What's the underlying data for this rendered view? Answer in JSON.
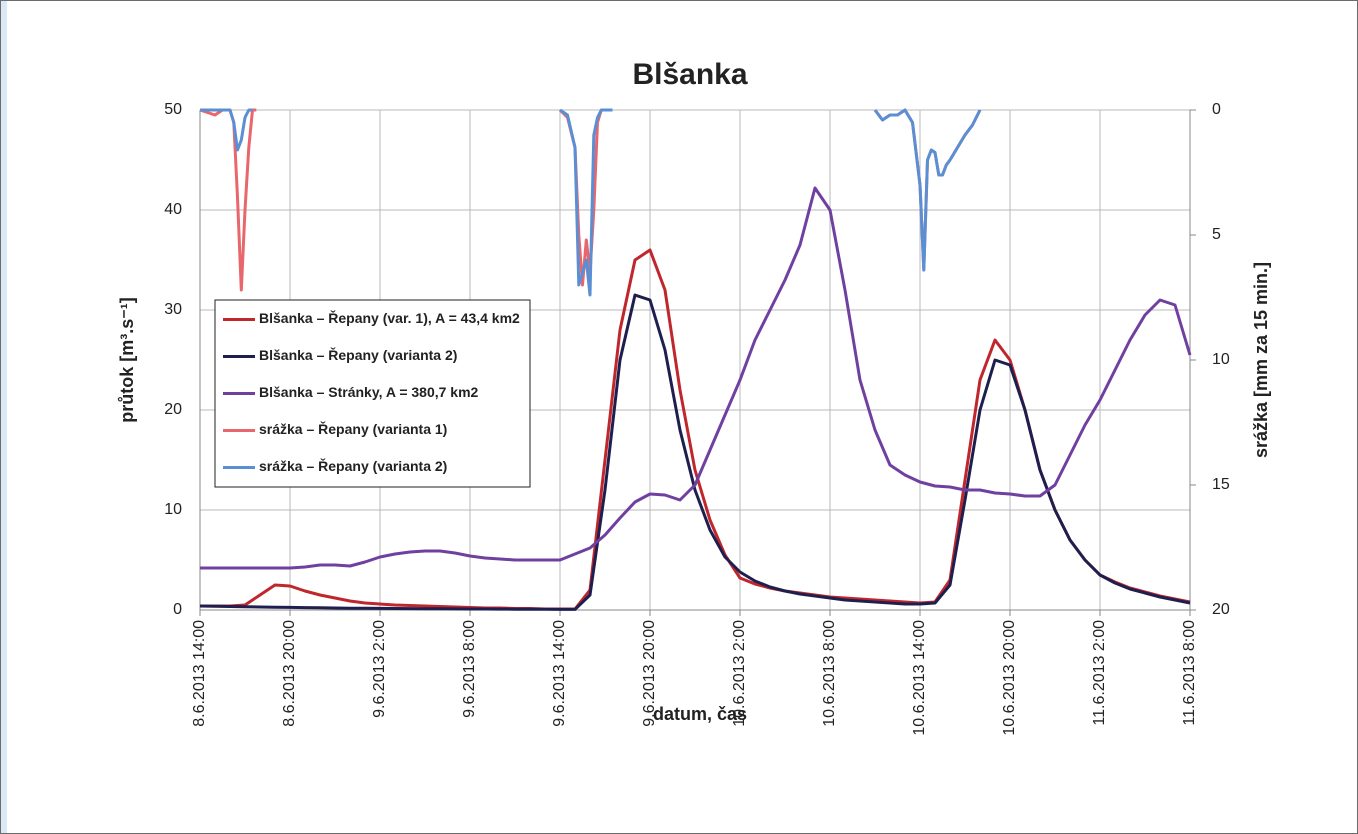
{
  "chart_data": {
    "type": "line",
    "title": "Blšanka",
    "x_label": "datum, čas",
    "y_label": "průtok [m³.s⁻¹]",
    "y2_label": "srážka [mm za 15 min.]",
    "xlim": [
      "2013-06-08T14:00",
      "2013-06-11T08:00"
    ],
    "xticks": [
      {
        "value": "2013-06-08T14:00",
        "label": "8.6.2013 14:00"
      },
      {
        "value": "2013-06-08T20:00",
        "label": "8.6.2013 20:00"
      },
      {
        "value": "2013-06-09T02:00",
        "label": "9.6.2013 2:00"
      },
      {
        "value": "2013-06-09T08:00",
        "label": "9.6.2013 8:00"
      },
      {
        "value": "2013-06-09T14:00",
        "label": "9.6.2013 14:00"
      },
      {
        "value": "2013-06-09T20:00",
        "label": "9.6.2013 20:00"
      },
      {
        "value": "2013-06-10T02:00",
        "label": "10.6.2013 2:00"
      },
      {
        "value": "2013-06-10T08:00",
        "label": "10.6.2013 8:00"
      },
      {
        "value": "2013-06-10T14:00",
        "label": "10.6.2013 14:00"
      },
      {
        "value": "2013-06-10T20:00",
        "label": "10.6.2013 20:00"
      },
      {
        "value": "2013-06-11T02:00",
        "label": "11.6.2013 2:00"
      },
      {
        "value": "2013-06-11T08:00",
        "label": "11.6.2013 8:00"
      }
    ],
    "ylim": [
      0,
      50
    ],
    "yticks": [
      0,
      10,
      20,
      30,
      40,
      50
    ],
    "y2lim": [
      20,
      0
    ],
    "y2ticks": [
      0,
      5,
      10,
      15,
      20
    ],
    "grid": true,
    "legend": "left",
    "x": [
      "2013-06-08T14:00",
      "2013-06-08T15:00",
      "2013-06-08T16:00",
      "2013-06-08T17:00",
      "2013-06-08T18:00",
      "2013-06-08T19:00",
      "2013-06-08T20:00",
      "2013-06-08T21:00",
      "2013-06-08T22:00",
      "2013-06-08T23:00",
      "2013-06-09T00:00",
      "2013-06-09T01:00",
      "2013-06-09T02:00",
      "2013-06-09T03:00",
      "2013-06-09T04:00",
      "2013-06-09T05:00",
      "2013-06-09T06:00",
      "2013-06-09T07:00",
      "2013-06-09T08:00",
      "2013-06-09T09:00",
      "2013-06-09T10:00",
      "2013-06-09T11:00",
      "2013-06-09T12:00",
      "2013-06-09T13:00",
      "2013-06-09T14:00",
      "2013-06-09T15:00",
      "2013-06-09T16:00",
      "2013-06-09T17:00",
      "2013-06-09T18:00",
      "2013-06-09T19:00",
      "2013-06-09T20:00",
      "2013-06-09T21:00",
      "2013-06-09T22:00",
      "2013-06-09T23:00",
      "2013-06-10T00:00",
      "2013-06-10T01:00",
      "2013-06-10T02:00",
      "2013-06-10T03:00",
      "2013-06-10T04:00",
      "2013-06-10T05:00",
      "2013-06-10T06:00",
      "2013-06-10T07:00",
      "2013-06-10T08:00",
      "2013-06-10T09:00",
      "2013-06-10T10:00",
      "2013-06-10T11:00",
      "2013-06-10T12:00",
      "2013-06-10T13:00",
      "2013-06-10T14:00",
      "2013-06-10T15:00",
      "2013-06-10T16:00",
      "2013-06-10T17:00",
      "2013-06-10T18:00",
      "2013-06-10T19:00",
      "2013-06-10T20:00",
      "2013-06-10T21:00",
      "2013-06-10T22:00",
      "2013-06-10T23:00",
      "2013-06-11T00:00",
      "2013-06-11T01:00",
      "2013-06-11T02:00",
      "2013-06-11T03:00",
      "2013-06-11T04:00",
      "2013-06-11T05:00",
      "2013-06-11T06:00",
      "2013-06-11T07:00",
      "2013-06-11T08:00"
    ],
    "series": [
      {
        "name": "Blšanka – Řepany (var. 1), A = 43,4 km2",
        "color": "#c0272d",
        "values": [
          0.4,
          0.4,
          0.4,
          0.5,
          1.5,
          2.5,
          2.4,
          1.9,
          1.5,
          1.2,
          0.9,
          0.7,
          0.6,
          0.5,
          0.45,
          0.4,
          0.35,
          0.3,
          0.25,
          0.2,
          0.2,
          0.15,
          0.15,
          0.1,
          0.1,
          0.1,
          2,
          15,
          28,
          35,
          36,
          32,
          22,
          14,
          9,
          5.5,
          3.2,
          2.6,
          2.2,
          1.9,
          1.7,
          1.5,
          1.3,
          1.2,
          1.1,
          1.0,
          0.9,
          0.8,
          0.7,
          0.8,
          3,
          13,
          23,
          27,
          25,
          20,
          14,
          10,
          7,
          5,
          3.5,
          2.8,
          2.2,
          1.8,
          1.4,
          1.1,
          0.8
        ]
      },
      {
        "name": "Blšanka – Řepany (varianta 2)",
        "color": "#1f1f4f",
        "values": [
          0.4,
          0.38,
          0.35,
          0.32,
          0.3,
          0.28,
          0.26,
          0.24,
          0.22,
          0.2,
          0.18,
          0.17,
          0.16,
          0.15,
          0.14,
          0.13,
          0.12,
          0.11,
          0.1,
          0.1,
          0.09,
          0.08,
          0.07,
          0.07,
          0.06,
          0.06,
          1.5,
          12,
          25,
          31.5,
          31,
          26,
          18,
          12,
          8,
          5.3,
          3.8,
          2.9,
          2.3,
          1.9,
          1.6,
          1.4,
          1.2,
          1.0,
          0.9,
          0.8,
          0.7,
          0.6,
          0.6,
          0.7,
          2.5,
          11,
          20,
          25,
          24.5,
          20,
          14,
          10,
          7,
          5,
          3.5,
          2.7,
          2.1,
          1.7,
          1.3,
          1.0,
          0.7
        ]
      },
      {
        "name": "Blšanka – Stránky, A = 380,7 km2",
        "color": "#7040a0",
        "values": [
          4.2,
          4.2,
          4.2,
          4.2,
          4.2,
          4.2,
          4.2,
          4.3,
          4.5,
          4.5,
          4.4,
          4.8,
          5.3,
          5.6,
          5.8,
          5.9,
          5.9,
          5.7,
          5.4,
          5.2,
          5.1,
          5.0,
          5.0,
          5.0,
          5.0,
          5.6,
          6.2,
          7.5,
          9.2,
          10.8,
          11.6,
          11.5,
          11.0,
          12.5,
          16,
          19.5,
          23,
          27,
          30,
          33,
          36.5,
          42.2,
          40,
          32,
          23,
          18,
          14.5,
          13.5,
          12.8,
          12.4,
          12.3,
          12.0,
          12.0,
          11.7,
          11.6,
          11.4,
          11.4,
          12.5,
          15.5,
          18.5,
          21,
          24,
          27,
          29.5,
          31,
          30.5,
          25.5
        ]
      },
      {
        "name": "srážka – Řepany (varianta 1)",
        "color": "#e8676c",
        "axis": "y2",
        "x": [
          "2013-06-08T14:00",
          "2013-06-08T14:30",
          "2013-06-08T15:00",
          "2013-06-08T15:30",
          "2013-06-08T16:00",
          "2013-06-08T16:15",
          "2013-06-08T16:30",
          "2013-06-08T16:45",
          "2013-06-08T17:00",
          "2013-06-08T17:15",
          "2013-06-08T17:30",
          "2013-06-08T17:45",
          "2013-06-08T18:00",
          "2013-06-09T14:00",
          "2013-06-09T14:30",
          "2013-06-09T15:00",
          "2013-06-09T15:15",
          "2013-06-09T15:30",
          "2013-06-09T15:45",
          "2013-06-09T16:00",
          "2013-06-09T16:15",
          "2013-06-09T16:30",
          "2013-06-09T16:45",
          "2013-06-09T17:30",
          "2013-06-09T18:00",
          "2013-06-10T11:00",
          "2013-06-10T11:30",
          "2013-06-10T12:00",
          "2013-06-10T12:30",
          "2013-06-10T13:00",
          "2013-06-10T13:30",
          "2013-06-10T14:00",
          "2013-06-10T14:15",
          "2013-06-10T14:30",
          "2013-06-10T14:45",
          "2013-06-10T15:00",
          "2013-06-10T15:15",
          "2013-06-10T15:30",
          "2013-06-10T15:45",
          "2013-06-10T16:00",
          "2013-06-10T16:30",
          "2013-06-10T17:00",
          "2013-06-10T17:30",
          "2013-06-10T18:00"
        ],
        "values": [
          0,
          0.1,
          0.2,
          0,
          0,
          0.5,
          3.5,
          7.2,
          4,
          1.5,
          0,
          0,
          null,
          0,
          0.3,
          1.5,
          5,
          7,
          5.2,
          6.5,
          4,
          0.5,
          0,
          0,
          null,
          0,
          0.4,
          0.2,
          0.2,
          0,
          0.5,
          3,
          6.4,
          2,
          1.6,
          1.7,
          2.6,
          2.6,
          2.2,
          2.0,
          1.5,
          1.0,
          0.6,
          0
        ]
      },
      {
        "name": "srážka – Řepany (varianta 2)",
        "color": "#5b8fd4",
        "axis": "y2",
        "x": [
          "2013-06-08T14:00",
          "2013-06-08T14:30",
          "2013-06-08T15:00",
          "2013-06-08T15:30",
          "2013-06-08T16:00",
          "2013-06-08T16:15",
          "2013-06-08T16:30",
          "2013-06-08T16:45",
          "2013-06-08T17:00",
          "2013-06-08T17:15",
          "2013-06-08T17:30",
          "2013-06-08T18:00",
          "2013-06-09T14:00",
          "2013-06-09T14:30",
          "2013-06-09T15:00",
          "2013-06-09T15:15",
          "2013-06-09T15:30",
          "2013-06-09T15:45",
          "2013-06-09T16:00",
          "2013-06-09T16:15",
          "2013-06-09T16:30",
          "2013-06-09T16:45",
          "2013-06-09T17:30",
          "2013-06-09T18:00",
          "2013-06-10T11:00",
          "2013-06-10T11:30",
          "2013-06-10T12:00",
          "2013-06-10T12:30",
          "2013-06-10T13:00",
          "2013-06-10T13:30",
          "2013-06-10T14:00",
          "2013-06-10T14:15",
          "2013-06-10T14:30",
          "2013-06-10T14:45",
          "2013-06-10T15:00",
          "2013-06-10T15:15",
          "2013-06-10T15:30",
          "2013-06-10T15:45",
          "2013-06-10T16:00",
          "2013-06-10T16:30",
          "2013-06-10T17:00",
          "2013-06-10T17:30",
          "2013-06-10T18:00"
        ],
        "values": [
          0,
          0,
          0,
          0,
          0,
          0.5,
          1.6,
          1.2,
          0.3,
          0,
          0,
          null,
          0,
          0.2,
          1.5,
          7,
          6.5,
          6,
          7.4,
          1,
          0.3,
          0,
          0,
          null,
          0,
          0.4,
          0.2,
          0.2,
          0,
          0.5,
          3,
          6.4,
          2,
          1.6,
          1.7,
          2.6,
          2.6,
          2.2,
          2.0,
          1.5,
          1.0,
          0.6,
          0
        ]
      }
    ]
  }
}
